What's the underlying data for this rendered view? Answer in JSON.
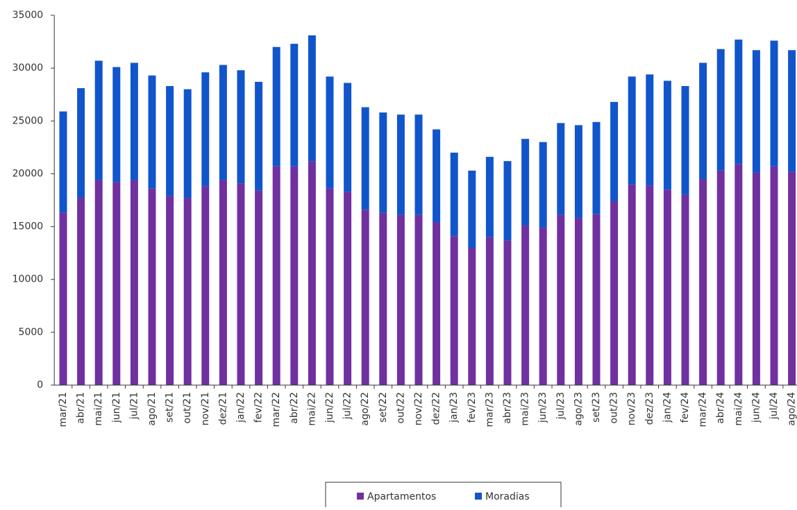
{
  "chart_data": {
    "type": "stacked_bar",
    "categories": [
      "mar/21",
      "abr/21",
      "mai/21",
      "jun/21",
      "jul/21",
      "ago/21",
      "set/21",
      "out/21",
      "nov/21",
      "dez/21",
      "jan/22",
      "fev/22",
      "mar/22",
      "abr/22",
      "mai/22",
      "jun/22",
      "jul/22",
      "ago/22",
      "set/22",
      "out/22",
      "nov/22",
      "dez/22",
      "jan/23",
      "fev/23",
      "mar/23",
      "abr/23",
      "mai/23",
      "jun/23",
      "jul/23",
      "ago/23",
      "set/23",
      "out/23",
      "nov/23",
      "dez/23",
      "jan/24",
      "fev/24",
      "mar/24",
      "abr/24",
      "mai/24",
      "jun/24",
      "jul/24",
      "ago/24"
    ],
    "series": [
      {
        "name": "Apartamentos",
        "color": "#7030a0",
        "values": [
          16300,
          17700,
          19400,
          19200,
          19400,
          18600,
          17900,
          17700,
          18800,
          19400,
          19100,
          18400,
          20700,
          20700,
          21200,
          18600,
          18300,
          16600,
          16300,
          16100,
          16100,
          15400,
          14100,
          13000,
          14000,
          13700,
          15100,
          14900,
          16100,
          15800,
          16200,
          17400,
          19000,
          18900,
          18500,
          18000,
          19500,
          20300,
          20900,
          20100,
          20700,
          20200
        ]
      },
      {
        "name": "Moradias",
        "color": "#1155cc",
        "values": [
          9600,
          10400,
          11300,
          10900,
          11100,
          10700,
          10400,
          10300,
          10800,
          10900,
          10700,
          10300,
          11300,
          11600,
          11900,
          10600,
          10300,
          9700,
          9500,
          9500,
          9500,
          8800,
          7900,
          7300,
          7600,
          7500,
          8200,
          8100,
          8700,
          8800,
          8700,
          9400,
          10200,
          10500,
          10300,
          10300,
          11000,
          11500,
          11800,
          11600,
          11900,
          11500
        ]
      }
    ],
    "ylim": [
      0,
      35000
    ],
    "yticks": [
      0,
      5000,
      10000,
      15000,
      20000,
      25000,
      30000,
      35000
    ]
  }
}
